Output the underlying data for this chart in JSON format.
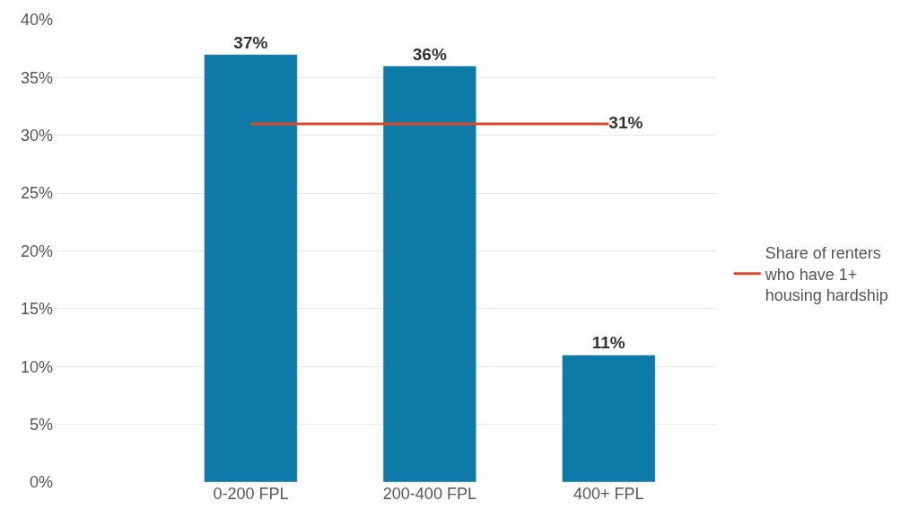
{
  "chart_data": {
    "type": "bar",
    "categories": [
      "0-200 FPL",
      "200-400 FPL",
      "400+ FPL"
    ],
    "series": [
      {
        "color": "#0e7aa8",
        "values": [
          37,
          36,
          11
        ],
        "value_labels": [
          "37%",
          "36%",
          "11%"
        ]
      },
      {
        "type": "line",
        "name": "Share of renters who have 1+ housing hardship",
        "color": "#e0482a",
        "values": [
          31,
          31,
          31
        ],
        "value_labels": [
          null,
          null,
          "31%"
        ]
      }
    ],
    "ylim": [
      0,
      40
    ],
    "yticks": [
      {
        "value": 0,
        "label": "0%"
      },
      {
        "value": 5,
        "label": "5%"
      },
      {
        "value": 10,
        "label": "10%"
      },
      {
        "value": 15,
        "label": "15%"
      },
      {
        "value": 20,
        "label": "20%"
      },
      {
        "value": 25,
        "label": "25%"
      },
      {
        "value": 30,
        "label": "30%"
      },
      {
        "value": 35,
        "label": "35%"
      },
      {
        "value": 40,
        "label": "40%"
      }
    ],
    "grid": "y",
    "legend": "right",
    "marker": "none",
    "line_style": "solid"
  }
}
